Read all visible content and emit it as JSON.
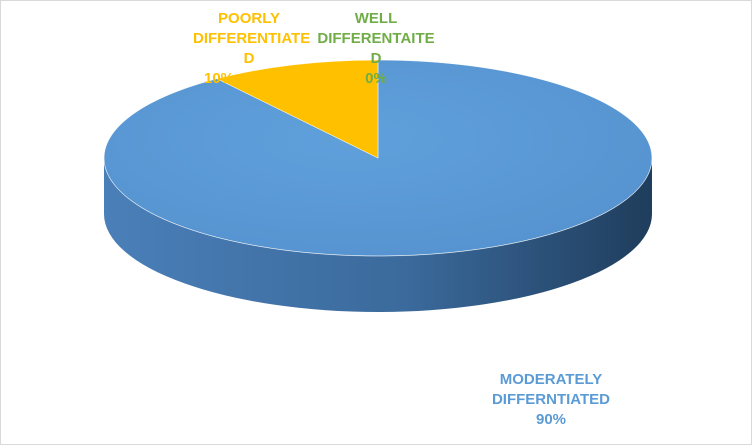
{
  "chart_data": {
    "type": "pie",
    "title": "",
    "slices": [
      {
        "name": "MODERATELY DIFFERNTIATED",
        "value": 90,
        "percent_label": "90%",
        "color": "#5b9bd5"
      },
      {
        "name": "WELL DIFFERENTAITED",
        "value": 0,
        "percent_label": "0%",
        "color": "#70ad47"
      },
      {
        "name": "POORLY DIFFERENTIATED",
        "value": 10,
        "percent_label": "10%",
        "color": "#ffc000"
      }
    ],
    "labels": {
      "poorly": {
        "line1": "POORLY",
        "line2": "DIFFERENTIATE",
        "line3": "D",
        "pct": "10%"
      },
      "well": {
        "line1": "WELL",
        "line2": "DIFFERENTAITE",
        "line3": "D",
        "pct": "0%"
      },
      "moderately": {
        "line1": "MODERATELY",
        "line2": "DIFFERNTIATED",
        "pct": "90%"
      }
    },
    "style": "3d-pie",
    "legend": "none"
  }
}
